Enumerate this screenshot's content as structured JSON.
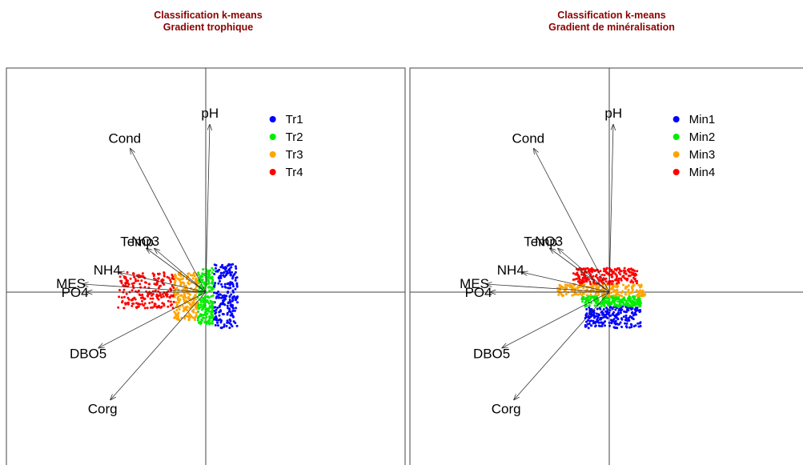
{
  "chart_data": [
    {
      "type": "scatter",
      "title_line1": "Classification k-means",
      "title_line2": "Gradient trophique",
      "xlim": [
        -2.5,
        2.5
      ],
      "ylim": [
        -2.2,
        2.8
      ],
      "grid": false,
      "legend_position": "top-right",
      "clusters": [
        {
          "name": "Tr1",
          "color": "#0000ff",
          "x_range": [
            0.1,
            0.4
          ],
          "y_range": [
            -0.45,
            0.35
          ]
        },
        {
          "name": "Tr2",
          "color": "#00ee00",
          "x_range": [
            -0.1,
            0.1
          ],
          "y_range": [
            -0.4,
            0.3
          ]
        },
        {
          "name": "Tr3",
          "color": "#ffa500",
          "x_range": [
            -0.4,
            -0.1
          ],
          "y_range": [
            -0.35,
            0.25
          ]
        },
        {
          "name": "Tr4",
          "color": "#ff0000",
          "x_range": [
            -1.1,
            -0.4
          ],
          "y_range": [
            -0.2,
            0.25
          ]
        }
      ],
      "variables": [
        {
          "name": "pH",
          "x": 0.05,
          "y": 2.1
        },
        {
          "name": "Cond",
          "x": -0.95,
          "y": 1.8
        },
        {
          "name": "NO3",
          "x": -0.65,
          "y": 0.55
        },
        {
          "name": "Temp",
          "x": -0.75,
          "y": 0.55
        },
        {
          "name": "NH4",
          "x": -1.1,
          "y": 0.25
        },
        {
          "name": "MES",
          "x": -1.55,
          "y": 0.1
        },
        {
          "name": "PO4",
          "x": -1.5,
          "y": 0.0
        },
        {
          "name": "DBO5",
          "x": -1.35,
          "y": -0.7
        },
        {
          "name": "Corg",
          "x": -1.2,
          "y": -1.35
        }
      ]
    },
    {
      "type": "scatter",
      "title_line1": "Classification k-means",
      "title_line2": "Gradient de minéralisation",
      "xlim": [
        -2.5,
        2.5
      ],
      "ylim": [
        -2.2,
        2.8
      ],
      "grid": false,
      "legend_position": "top-right",
      "clusters": [
        {
          "name": "Min1",
          "color": "#0000ff",
          "x_range": [
            -0.3,
            0.4
          ],
          "y_range": [
            -0.45,
            -0.18
          ]
        },
        {
          "name": "Min2",
          "color": "#00ee00",
          "x_range": [
            -0.35,
            0.4
          ],
          "y_range": [
            -0.18,
            -0.05
          ]
        },
        {
          "name": "Min3",
          "color": "#ffa500",
          "x_range": [
            -0.65,
            0.45
          ],
          "y_range": [
            -0.05,
            0.1
          ]
        },
        {
          "name": "Min4",
          "color": "#ff0000",
          "x_range": [
            -0.45,
            0.35
          ],
          "y_range": [
            0.1,
            0.3
          ]
        }
      ],
      "variables": [
        {
          "name": "pH",
          "x": 0.05,
          "y": 2.1
        },
        {
          "name": "Cond",
          "x": -0.95,
          "y": 1.8
        },
        {
          "name": "NO3",
          "x": -0.65,
          "y": 0.55
        },
        {
          "name": "Temp",
          "x": -0.75,
          "y": 0.55
        },
        {
          "name": "NH4",
          "x": -1.1,
          "y": 0.25
        },
        {
          "name": "MES",
          "x": -1.55,
          "y": 0.1
        },
        {
          "name": "PO4",
          "x": -1.5,
          "y": 0.0
        },
        {
          "name": "DBO5",
          "x": -1.35,
          "y": -0.7
        },
        {
          "name": "Corg",
          "x": -1.2,
          "y": -1.35
        }
      ]
    }
  ]
}
